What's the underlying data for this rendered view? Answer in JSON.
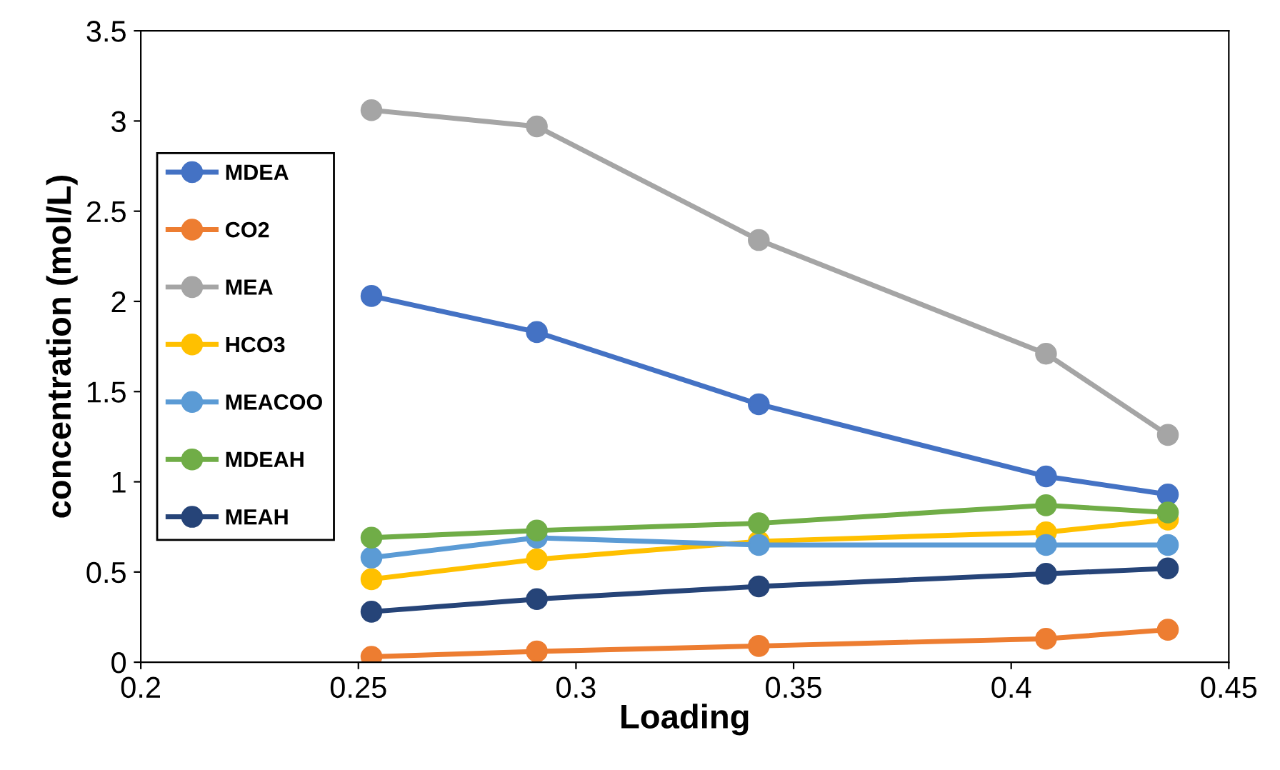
{
  "chart_data": {
    "type": "line",
    "xlabel": "Loading",
    "ylabel": "concentration (mol/L)",
    "x": [
      0.253,
      0.291,
      0.342,
      0.408,
      0.436
    ],
    "xlim": [
      0.2,
      0.45
    ],
    "xticks": [
      0.2,
      0.25,
      0.3,
      0.35,
      0.4,
      0.45
    ],
    "ylim": [
      0,
      3.5
    ],
    "yticks": [
      0,
      0.5,
      1,
      1.5,
      2,
      2.5,
      3,
      3.5
    ],
    "grid": false,
    "legend": "left",
    "marker": "circle",
    "line_style": "solid",
    "series": [
      {
        "name": "MDEA",
        "color": "#4472c4",
        "values": [
          2.03,
          1.83,
          1.43,
          1.03,
          0.93
        ]
      },
      {
        "name": "CO2",
        "color": "#ed7d31",
        "values": [
          0.03,
          0.06,
          0.09,
          0.13,
          0.18
        ]
      },
      {
        "name": "MEA",
        "color": "#a5a5a5",
        "values": [
          3.06,
          2.97,
          2.34,
          1.71,
          1.26
        ]
      },
      {
        "name": "HCO3",
        "color": "#ffc000",
        "values": [
          0.46,
          0.57,
          0.67,
          0.72,
          0.79
        ]
      },
      {
        "name": "MEACOO",
        "color": "#5b9bd5",
        "values": [
          0.58,
          0.69,
          0.65,
          0.65,
          0.65
        ]
      },
      {
        "name": "MDEAH",
        "color": "#70ad47",
        "values": [
          0.69,
          0.73,
          0.77,
          0.87,
          0.83
        ]
      },
      {
        "name": "MEAH",
        "color": "#264478",
        "values": [
          0.28,
          0.35,
          0.42,
          0.49,
          0.52
        ]
      }
    ]
  }
}
